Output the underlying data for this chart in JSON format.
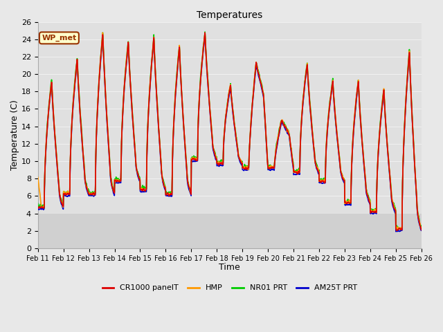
{
  "title": "Temperatures",
  "xlabel": "Time",
  "ylabel": "Temperature (C)",
  "ylim": [
    0,
    26
  ],
  "yticks": [
    0,
    2,
    4,
    6,
    8,
    10,
    12,
    14,
    16,
    18,
    20,
    22,
    24,
    26
  ],
  "x_labels": [
    "Feb 11",
    "Feb 12",
    "Feb 13",
    "Feb 14",
    "Feb 15",
    "Feb 16",
    "Feb 17",
    "Feb 18",
    "Feb 19",
    "Feb 20",
    "Feb 21",
    "Feb 22",
    "Feb 23",
    "Feb 24",
    "Feb 25",
    "Feb 26"
  ],
  "annotation_text": "WP_met",
  "annotation_bg": "#ffffcc",
  "annotation_border": "#993300",
  "background_color": "#e8e8e8",
  "plot_bg": "#e0e0e0",
  "band_bg": "#d0d0d0",
  "grid_color": "#f0f0f0",
  "colors": {
    "CR1000 panelT": "#dd0000",
    "HMP": "#ff9900",
    "NR01 PRT": "#00cc00",
    "AM25T PRT": "#0000cc"
  },
  "legend_labels": [
    "CR1000 panelT",
    "HMP",
    "NR01 PRT",
    "AM25T PRT"
  ]
}
